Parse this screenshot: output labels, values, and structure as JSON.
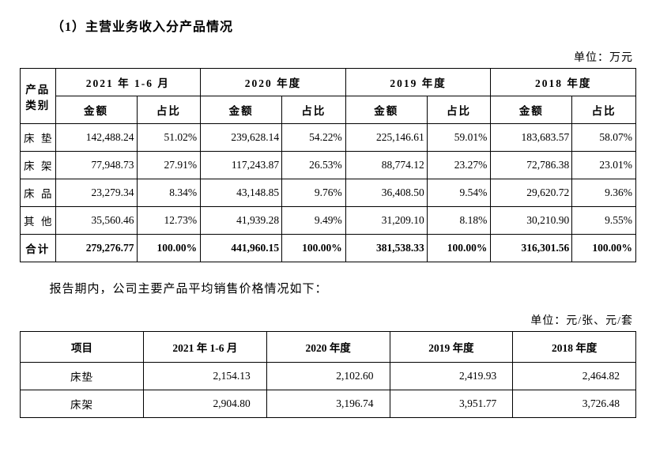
{
  "heading": "（1）主营业务收入分产品情况",
  "table1": {
    "unit_label": "单位：万元",
    "category_header": "产品类别",
    "periods": [
      "2021 年 1-6 月",
      "2020 年度",
      "2019 年度",
      "2018 年度"
    ],
    "subheaders": {
      "amount": "金额",
      "ratio": "占比"
    },
    "rows": [
      {
        "name": "床垫",
        "vals": [
          "142,488.24",
          "51.02%",
          "239,628.14",
          "54.22%",
          "225,146.61",
          "59.01%",
          "183,683.57",
          "58.07%"
        ]
      },
      {
        "name": "床架",
        "vals": [
          "77,948.73",
          "27.91%",
          "117,243.87",
          "26.53%",
          "88,774.12",
          "23.27%",
          "72,786.38",
          "23.01%"
        ]
      },
      {
        "name": "床品",
        "vals": [
          "23,279.34",
          "8.34%",
          "43,148.85",
          "9.76%",
          "36,408.50",
          "9.54%",
          "29,620.72",
          "9.36%"
        ]
      },
      {
        "name": "其他",
        "vals": [
          "35,560.46",
          "12.73%",
          "41,939.28",
          "9.49%",
          "31,209.10",
          "8.18%",
          "30,210.90",
          "9.55%"
        ]
      }
    ],
    "total": {
      "name": "合计",
      "vals": [
        "279,276.77",
        "100.00%",
        "441,960.15",
        "100.00%",
        "381,538.33",
        "100.00%",
        "316,301.56",
        "100.00%"
      ]
    }
  },
  "intertext": "报告期内，公司主要产品平均销售价格情况如下：",
  "table2": {
    "unit_label": "单位：元/张、元/套",
    "headers": [
      "项目",
      "2021 年 1-6 月",
      "2020 年度",
      "2019 年度",
      "2018 年度"
    ],
    "rows": [
      {
        "name": "床垫",
        "vals": [
          "2,154.13",
          "2,102.60",
          "2,419.93",
          "2,464.82"
        ]
      },
      {
        "name": "床架",
        "vals": [
          "2,904.80",
          "3,196.74",
          "3,951.77",
          "3,726.48"
        ]
      }
    ]
  }
}
